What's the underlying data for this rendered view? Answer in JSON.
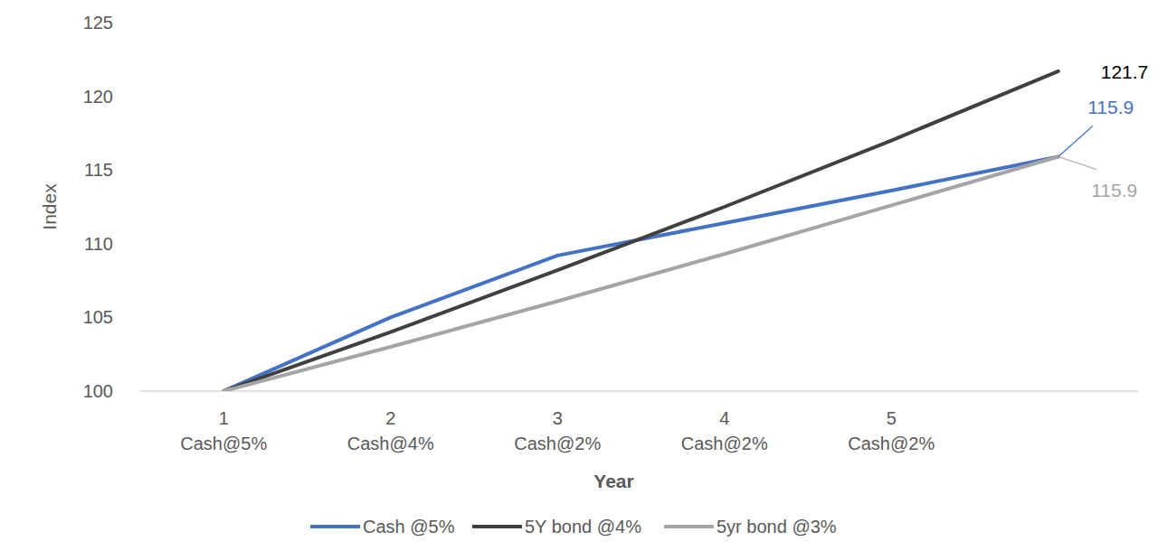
{
  "chart_data": {
    "type": "line",
    "x_label": "Year",
    "y_label": "Index",
    "categories": [
      "1\nCash@5%",
      "2\nCash@4%",
      "3\nCash@2%",
      "4\nCash@2%",
      "5\nCash@2%",
      null
    ],
    "series": [
      {
        "name": "Cash @5%",
        "color": "#4472c4",
        "values": [
          100,
          105,
          109.2,
          111.4,
          113.6,
          115.9
        ],
        "value_labels": [
          null,
          null,
          null,
          null,
          null,
          "115.9"
        ]
      },
      {
        "name": "5Y bond @4%",
        "color": "#404040",
        "values": [
          100,
          104,
          108.2,
          112.5,
          117.0,
          121.7
        ],
        "value_labels": [
          null,
          null,
          null,
          null,
          null,
          "121.7"
        ]
      },
      {
        "name": "5yr bond @3%",
        "color": "#a5a5a5",
        "values": [
          100,
          103,
          106.1,
          109.3,
          112.6,
          115.9
        ],
        "value_labels": [
          null,
          null,
          null,
          null,
          null,
          "115.9"
        ]
      }
    ],
    "ylim": [
      100,
      125
    ],
    "yticks": [
      100,
      105,
      110,
      115,
      120,
      125
    ],
    "grid": false,
    "legend": "bottom"
  }
}
